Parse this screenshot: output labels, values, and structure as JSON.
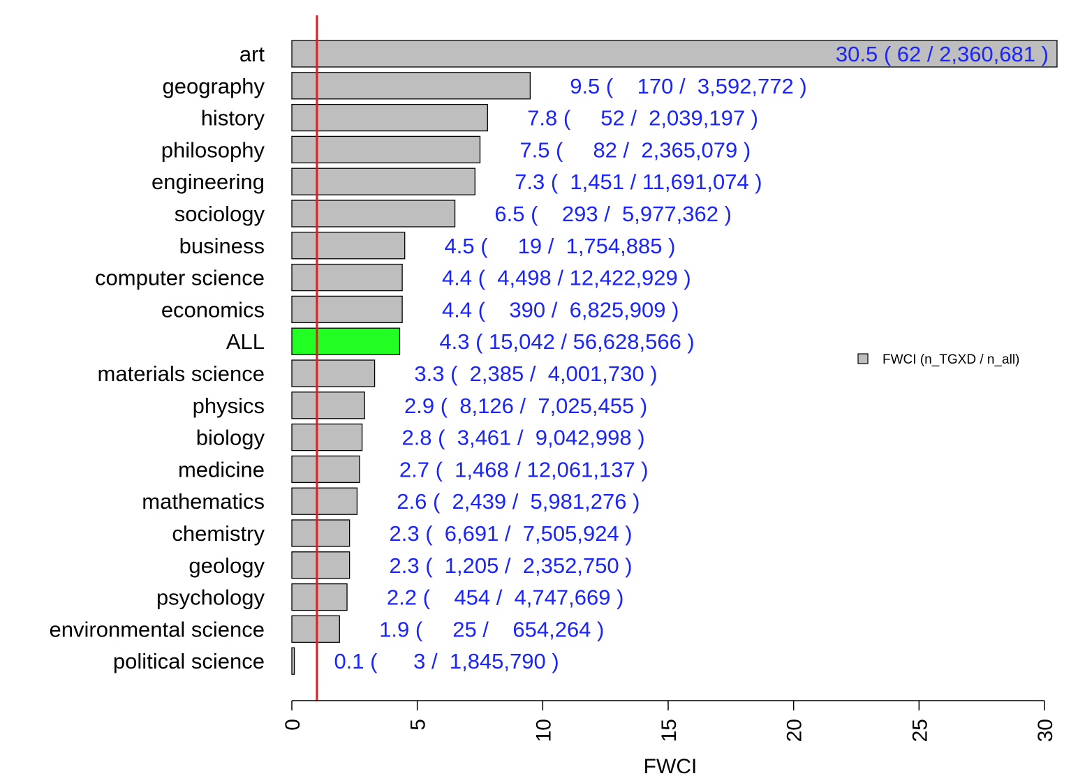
{
  "chart_data": {
    "type": "bar",
    "orientation": "horizontal",
    "categories": [
      "art",
      "geography",
      "history",
      "philosophy",
      "engineering",
      "sociology",
      "business",
      "computer science",
      "economics",
      "ALL",
      "materials science",
      "physics",
      "biology",
      "medicine",
      "mathematics",
      "chemistry",
      "geology",
      "psychology",
      "environmental science",
      "political science"
    ],
    "values": [
      30.5,
      9.5,
      7.8,
      7.5,
      7.3,
      6.5,
      4.5,
      4.4,
      4.4,
      4.3,
      3.3,
      2.9,
      2.8,
      2.7,
      2.6,
      2.3,
      2.3,
      2.2,
      1.9,
      0.1
    ],
    "highlight": [
      "",
      "",
      "",
      "",
      "",
      "",
      "",
      "",
      "",
      "ALL",
      "",
      "",
      "",
      "",
      "",
      "",
      "",
      "",
      "",
      ""
    ],
    "value_labels": [
      "30.5 ( 62 / 2,360,681 )",
      "9.5 (    170 /  3,592,772 )",
      "7.8 (     52 /  2,039,197 )",
      "7.5 (     82 /  2,365,079 )",
      "7.3 (  1,451 / 11,691,074 )",
      "6.5 (    293 /  5,977,362 )",
      "4.5 (     19 /  1,754,885 )",
      "4.4 (  4,498 / 12,422,929 )",
      "4.4 (    390 /  6,825,909 )",
      "4.3 ( 15,042 / 56,628,566 )",
      "3.3 (  2,385 /  4,001,730 )",
      "2.9 (  8,126 /  7,025,455 )",
      "2.8 (  3,461 /  9,042,998 )",
      "2.7 (  1,468 / 12,061,137 )",
      "2.6 (  2,439 /  5,981,276 )",
      "2.3 (  6,691 /  7,505,924 )",
      "2.3 (  1,205 /  2,352,750 )",
      "2.2 (    454 /  4,747,669 )",
      "1.9 (     25 /    654,264 )",
      "0.1 (      3 /  1,845,790 )"
    ],
    "xlabel": "FWCI",
    "xlim": [
      0,
      30
    ],
    "xticks": [
      0,
      5,
      10,
      15,
      20,
      25,
      30
    ],
    "reference_line": 1,
    "legend": {
      "label": "FWCI (n_TGXD / n_all)",
      "position": "right"
    },
    "colors": {
      "bar": "#bebebe",
      "highlight": "#22ff22",
      "value_text": "#1a24ff",
      "reference": "#e8191d"
    },
    "grid": false
  }
}
